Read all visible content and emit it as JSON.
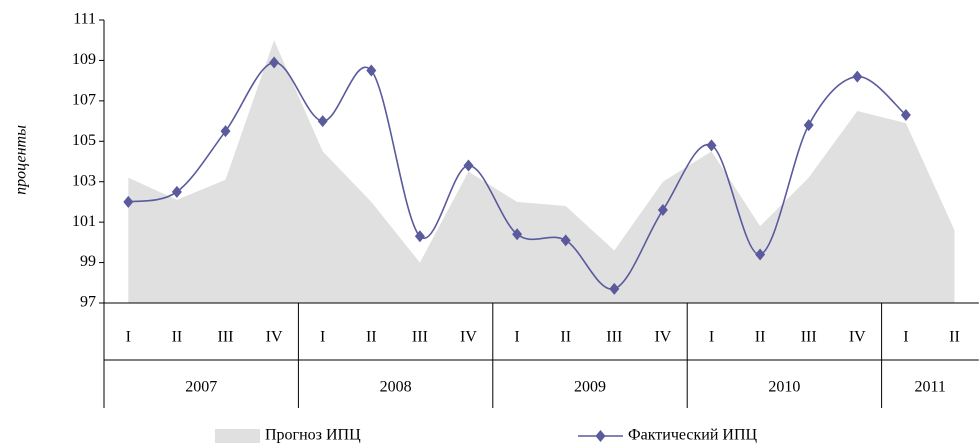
{
  "chart_data": {
    "type": "combo",
    "y_label": "проценты",
    "categories": [
      "I",
      "II",
      "III",
      "IV",
      "I",
      "II",
      "III",
      "IV",
      "I",
      "II",
      "III",
      "IV",
      "I",
      "II",
      "III",
      "IV",
      "I",
      "II"
    ],
    "groups": [
      {
        "label": "2007",
        "span": 4
      },
      {
        "label": "2008",
        "span": 4
      },
      {
        "label": "2009",
        "span": 4
      },
      {
        "label": "2010",
        "span": 4
      },
      {
        "label": "2011",
        "span": 2
      }
    ],
    "series": [
      {
        "name": "Прогноз ИПЦ",
        "type": "area",
        "color": "#e0e0e0",
        "values": [
          103.2,
          102.1,
          103.1,
          110.0,
          104.5,
          102.0,
          99.0,
          103.5,
          102.0,
          101.8,
          99.6,
          103.0,
          104.5,
          100.8,
          103.2,
          106.5,
          105.9,
          100.6
        ]
      },
      {
        "name": "Фактический ИПЦ",
        "type": "line",
        "color": "#5a5a9c",
        "values": [
          102.0,
          102.5,
          105.5,
          108.9,
          106.0,
          108.5,
          100.3,
          103.8,
          100.4,
          100.1,
          97.7,
          101.6,
          104.8,
          99.4,
          105.8,
          108.2,
          106.3,
          null
        ]
      }
    ],
    "ylim": [
      97,
      111
    ],
    "yticks": [
      97,
      99,
      101,
      103,
      105,
      107,
      109,
      111
    ],
    "legend": "bottom"
  }
}
